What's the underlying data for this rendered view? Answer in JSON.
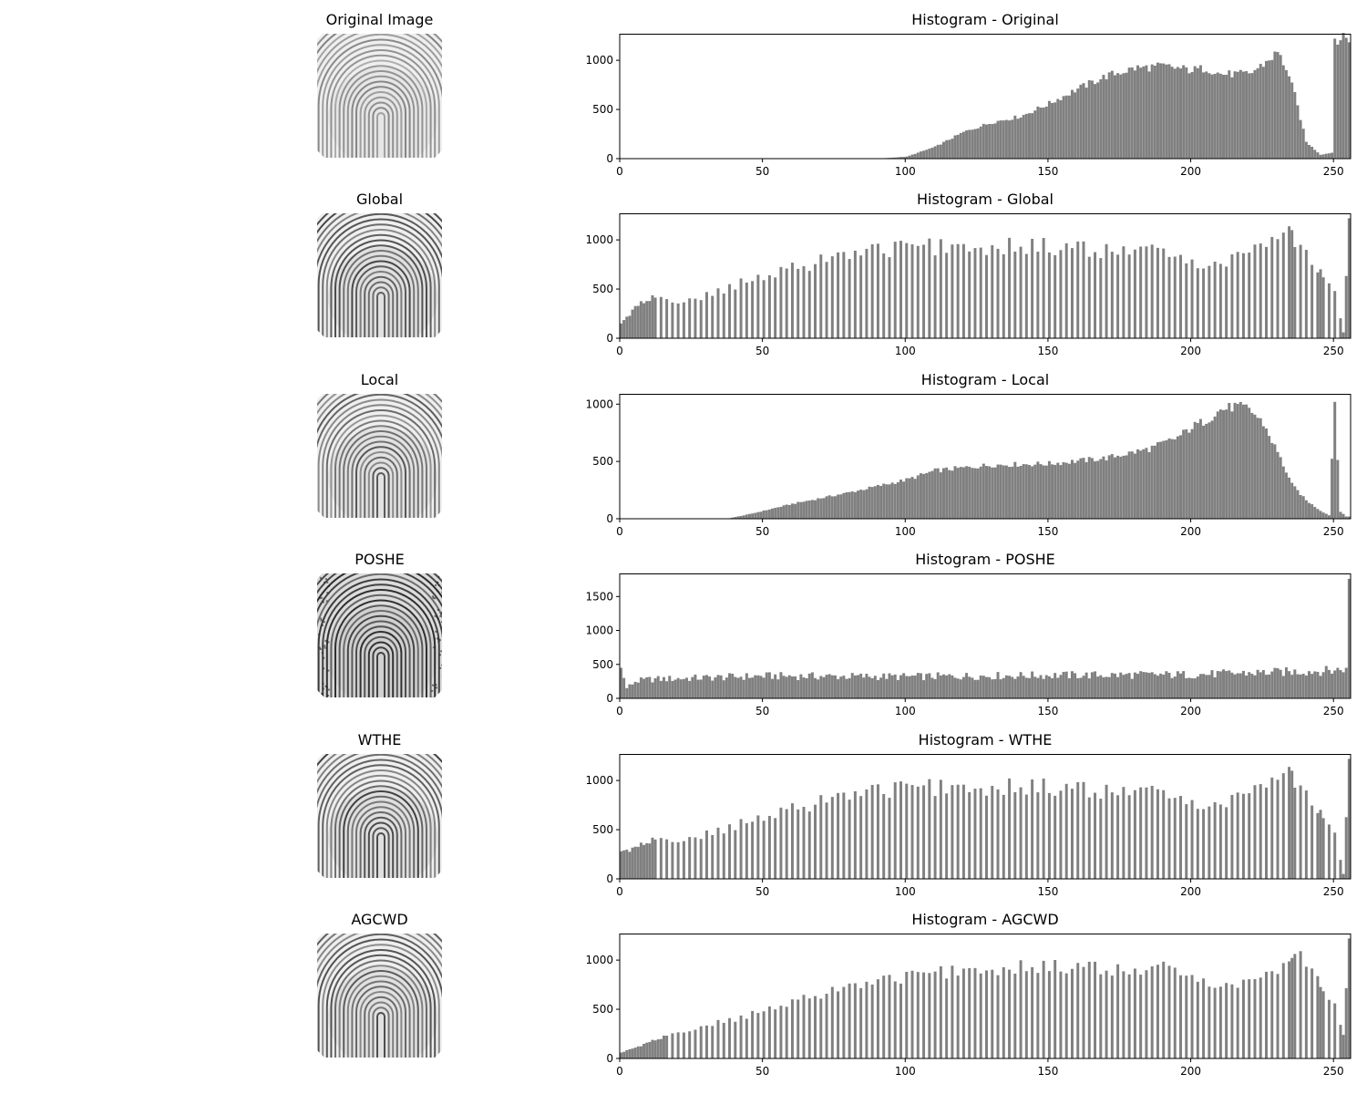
{
  "figure": {
    "panels": [
      {
        "image_title": "Original Image",
        "hist_title": "Histogram - Original"
      },
      {
        "image_title": "Global",
        "hist_title": "Histogram - Global"
      },
      {
        "image_title": "Local",
        "hist_title": "Histogram - Local"
      },
      {
        "image_title": "POSHE",
        "hist_title": "Histogram - POSHE"
      },
      {
        "image_title": "WTHE",
        "hist_title": "Histogram - WTHE"
      },
      {
        "image_title": "AGCWD",
        "hist_title": "Histogram - AGCWD"
      }
    ]
  },
  "colors": {
    "bars": "#808080",
    "axes": "#000000"
  },
  "chart_data": [
    {
      "type": "bar",
      "title": "Histogram - Original",
      "xlim": [
        0,
        256
      ],
      "ylim": [
        0,
        1270
      ],
      "xticks": [
        0,
        50,
        100,
        150,
        200,
        250
      ],
      "yticks": [
        0,
        500,
        1000
      ],
      "profile": "original",
      "x": [
        90,
        100,
        110,
        120,
        130,
        140,
        150,
        160,
        170,
        180,
        190,
        200,
        205,
        210,
        220,
        225,
        230,
        233,
        236,
        240,
        245,
        249,
        250
      ],
      "values": [
        0,
        20,
        120,
        270,
        370,
        430,
        560,
        710,
        840,
        920,
        940,
        900,
        920,
        860,
        860,
        960,
        1080,
        920,
        650,
        170,
        40,
        60,
        1220
      ]
    },
    {
      "type": "bar",
      "title": "Histogram - Global",
      "xlim": [
        0,
        256
      ],
      "ylim": [
        0,
        1270
      ],
      "xticks": [
        0,
        50,
        100,
        150,
        200,
        250
      ],
      "yticks": [
        0,
        500,
        1000
      ],
      "profile": "sparse",
      "x": [
        0,
        5,
        10,
        20,
        30,
        40,
        50,
        60,
        70,
        80,
        90,
        100,
        120,
        150,
        170,
        180,
        190,
        200,
        210,
        220,
        230,
        235,
        240,
        245,
        250,
        253,
        255
      ],
      "values": [
        150,
        320,
        400,
        380,
        430,
        540,
        610,
        700,
        800,
        870,
        900,
        920,
        940,
        930,
        880,
        900,
        860,
        780,
        770,
        870,
        1060,
        1050,
        860,
        700,
        480,
        60,
        1220
      ]
    },
    {
      "type": "bar",
      "title": "Histogram - Local",
      "xlim": [
        0,
        256
      ],
      "ylim": [
        0,
        1090
      ],
      "xticks": [
        0,
        50,
        100,
        150,
        200,
        250
      ],
      "yticks": [
        0,
        500,
        1000
      ],
      "profile": "local",
      "x": [
        0,
        37,
        45,
        60,
        80,
        100,
        110,
        130,
        150,
        170,
        185,
        195,
        200,
        205,
        210,
        215,
        220,
        225,
        230,
        235,
        240,
        245,
        248,
        250,
        252,
        254
      ],
      "values": [
        0,
        0,
        40,
        130,
        230,
        340,
        420,
        470,
        480,
        530,
        610,
        710,
        800,
        860,
        950,
        980,
        960,
        830,
        580,
        300,
        160,
        70,
        30,
        1020,
        60,
        20
      ]
    },
    {
      "type": "bar",
      "title": "Histogram - POSHE",
      "xlim": [
        0,
        256
      ],
      "ylim": [
        0,
        1840
      ],
      "xticks": [
        0,
        50,
        100,
        150,
        200,
        250
      ],
      "yticks": [
        0,
        500,
        1000,
        1500
      ],
      "profile": "dense",
      "x": [
        0,
        1,
        2,
        5,
        10,
        50,
        100,
        150,
        200,
        250,
        254,
        255
      ],
      "values": [
        450,
        300,
        150,
        250,
        280,
        330,
        320,
        340,
        350,
        410,
        450,
        1760
      ]
    },
    {
      "type": "bar",
      "title": "Histogram - WTHE",
      "xlim": [
        0,
        256
      ],
      "ylim": [
        0,
        1270
      ],
      "xticks": [
        0,
        50,
        100,
        150,
        200,
        250
      ],
      "yticks": [
        0,
        500,
        1000
      ],
      "profile": "sparse",
      "x": [
        0,
        5,
        10,
        20,
        30,
        40,
        50,
        60,
        70,
        80,
        90,
        100,
        120,
        150,
        170,
        180,
        190,
        200,
        210,
        220,
        230,
        235,
        240,
        245,
        250,
        253,
        255
      ],
      "values": [
        280,
        320,
        380,
        400,
        450,
        540,
        610,
        700,
        800,
        870,
        900,
        920,
        940,
        930,
        880,
        900,
        850,
        780,
        770,
        870,
        1060,
        1050,
        860,
        700,
        470,
        50,
        1220
      ]
    },
    {
      "type": "bar",
      "title": "Histogram - AGCWD",
      "xlim": [
        0,
        256
      ],
      "ylim": [
        0,
        1270
      ],
      "xticks": [
        0,
        50,
        100,
        150,
        200,
        250
      ],
      "yticks": [
        0,
        500,
        1000
      ],
      "profile": "agcwd",
      "x": [
        0,
        5,
        10,
        20,
        30,
        40,
        50,
        60,
        70,
        80,
        90,
        100,
        120,
        140,
        160,
        180,
        190,
        200,
        210,
        220,
        230,
        235,
        240,
        245,
        250,
        253,
        255
      ],
      "values": [
        60,
        110,
        170,
        260,
        340,
        400,
        480,
        560,
        660,
        740,
        790,
        830,
        900,
        930,
        930,
        880,
        920,
        820,
        760,
        770,
        900,
        1060,
        1000,
        760,
        560,
        240,
        1220
      ]
    }
  ]
}
